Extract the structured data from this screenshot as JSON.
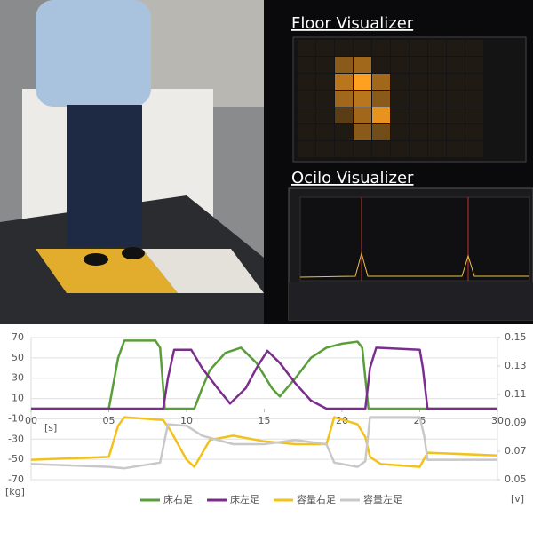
{
  "visualizers": {
    "floor_title": "Floor Visualizer",
    "scope_title": "Ocilo Visualizer"
  },
  "chart_data": {
    "type": "line",
    "xlim": [
      0,
      30
    ],
    "xticks": [
      {
        "value": 0,
        "label": "00"
      },
      {
        "value": 5,
        "label": "05"
      },
      10,
      15,
      20,
      25,
      30
    ],
    "ylim": [
      -70,
      70
    ],
    "yticks": [
      -70,
      -50,
      -30,
      -10,
      10,
      30,
      50,
      70
    ],
    "y2lim": [
      0.05,
      0.15
    ],
    "y2ticks": [
      0.05,
      0.07,
      0.09,
      0.11,
      0.13,
      0.15
    ],
    "x_label": "[s]",
    "y_label": "[kg]",
    "y2_label": "[v]",
    "grid": true,
    "series": [
      {
        "name": "床右足",
        "color": "#5a9e3a",
        "x": [
          0,
          5,
          5.6,
          6,
          8,
          8.3,
          8.6,
          10.5,
          11,
          11.5,
          12.5,
          13.5,
          14.5,
          15.5,
          16,
          17,
          18,
          19,
          20,
          21,
          21.3,
          21.7,
          25,
          30
        ],
        "values": [
          0,
          0,
          50,
          67,
          67,
          60,
          0,
          0,
          20,
          38,
          55,
          60,
          45,
          20,
          12,
          30,
          50,
          60,
          64,
          66,
          60,
          0,
          0,
          0
        ]
      },
      {
        "name": "床左足",
        "color": "#7b2d8e",
        "x": [
          0,
          8.5,
          8.8,
          9.2,
          10.3,
          11,
          12,
          12.8,
          13.8,
          14.5,
          15.2,
          16,
          17,
          18,
          19,
          21.5,
          21.8,
          22.2,
          25,
          25.2,
          25.5,
          30
        ],
        "values": [
          0,
          0,
          30,
          58,
          58,
          40,
          20,
          5,
          20,
          40,
          57,
          45,
          25,
          8,
          0,
          0,
          40,
          60,
          58,
          40,
          0,
          0
        ]
      },
      {
        "name": "容量右足",
        "color": "#f2c21b",
        "axis": "y2",
        "x": [
          0,
          5,
          5.6,
          6,
          8.5,
          9,
          10,
          10.5,
          11.5,
          13,
          15,
          17,
          19,
          19.5,
          21,
          21.5,
          21.8,
          22.5,
          25,
          25.5,
          30
        ],
        "values": [
          0.064,
          0.066,
          0.088,
          0.094,
          0.092,
          0.084,
          0.064,
          0.059,
          0.078,
          0.081,
          0.077,
          0.075,
          0.075,
          0.094,
          0.089,
          0.08,
          0.066,
          0.061,
          0.059,
          0.069,
          0.067
        ]
      },
      {
        "name": "容量左足",
        "color": "#c8c8c8",
        "axis": "y2",
        "x": [
          0,
          5,
          6,
          8.3,
          8.8,
          10,
          11,
          13,
          15,
          17,
          19,
          19.5,
          21,
          21.5,
          21.8,
          25,
          25.3,
          25.5,
          30
        ],
        "values": [
          0.061,
          0.059,
          0.058,
          0.062,
          0.089,
          0.088,
          0.081,
          0.075,
          0.075,
          0.078,
          0.075,
          0.062,
          0.059,
          0.063,
          0.094,
          0.094,
          0.08,
          0.064,
          0.064
        ]
      }
    ]
  }
}
